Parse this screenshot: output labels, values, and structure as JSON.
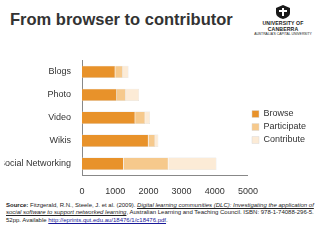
{
  "header": {
    "title": "From browser to contributor",
    "logo": [
      "UNIVERSITY OF",
      "CANBERRA",
      "AUSTRALIA'S CAPITAL UNIVERSITY"
    ]
  },
  "chart_data": {
    "type": "bar",
    "orientation": "horizontal",
    "stacked": true,
    "categories": [
      "Blogs",
      "Photo",
      "Video",
      "Wikis",
      "Social Networking"
    ],
    "series": [
      {
        "name": "Browse",
        "color": "#e8922a",
        "values": [
          1000,
          1050,
          1600,
          2000,
          1250
        ]
      },
      {
        "name": "Participate",
        "color": "#f6c98c",
        "values": [
          230,
          270,
          300,
          200,
          1350
        ]
      },
      {
        "name": "Contribute",
        "color": "#fcebd6",
        "values": [
          170,
          400,
          150,
          100,
          1450
        ]
      }
    ],
    "xlim": [
      0,
      5000
    ],
    "xticks": [
      0,
      1000,
      2000,
      3000,
      4000,
      5000
    ],
    "grid": false,
    "legend": "right"
  },
  "source": {
    "label": "Source:",
    "before": "Fitzgerald, R.N., Steele, J. et al. (2009).",
    "title": "Digital learning communities (DLC): Investigating the application of social software to support networked learning",
    "after": ", Australian Learning and Teaching Council. ISBN: 978-1-74088-296-5. 52pp. Available",
    "url": "http://eprints.qut.edu.au/18476/1/c18476.pdf",
    "end": "."
  }
}
